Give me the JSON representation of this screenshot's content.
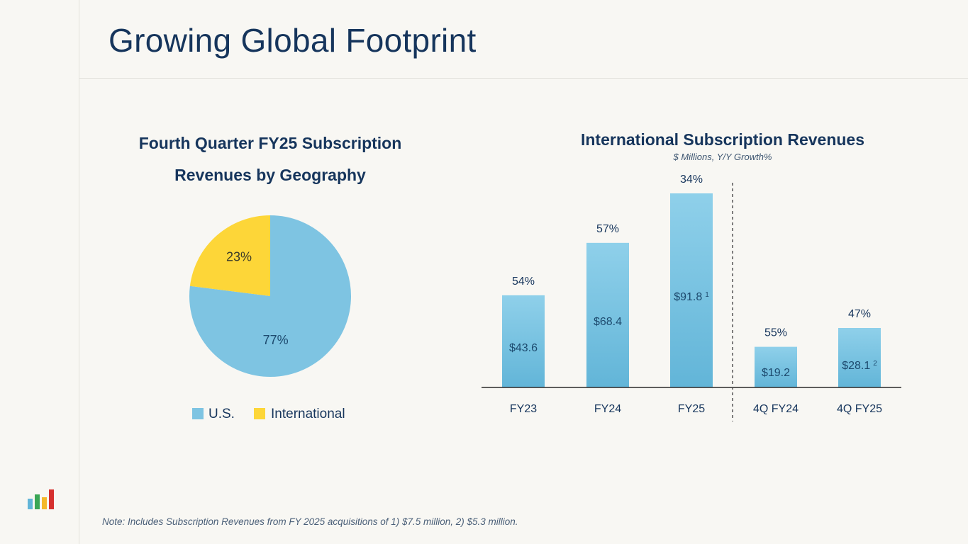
{
  "title": "Growing Global Footprint",
  "note": "Note: Includes Subscription Revenues from FY 2025 acquisitions of 1) $7.5 million, 2) $5.3 million.",
  "colors": {
    "us": "#7ec4e2",
    "international": "#fdd638",
    "bar_top": "#8fd0ea",
    "bar_bottom": "#62b5d8",
    "title": "#16355c"
  },
  "chart_data": [
    {
      "type": "pie",
      "title": "Fourth Quarter FY25 Subscription Revenues by Geography",
      "slices": [
        {
          "label": "U.S.",
          "value": 77,
          "display": "77%"
        },
        {
          "label": "International",
          "value": 23,
          "display": "23%"
        }
      ],
      "legend": [
        "U.S.",
        "International"
      ],
      "legend_position": "bottom"
    },
    {
      "type": "bar",
      "title": "International Subscription Revenues",
      "subtitle": "$ Millions, Y/Y Growth%",
      "categories": [
        "FY23",
        "FY24",
        "FY25",
        "4Q FY24",
        "4Q FY25"
      ],
      "values": [
        43.6,
        68.4,
        91.8,
        19.2,
        28.1
      ],
      "value_labels": [
        "$43.6",
        "$68.4",
        "$91.8",
        "$19.2",
        "$28.1"
      ],
      "footnotes": [
        "",
        "",
        "1",
        "",
        "2"
      ],
      "growth_labels": [
        "54%",
        "57%",
        "34%",
        "55%",
        "47%"
      ],
      "annual_ylim": [
        0,
        95
      ],
      "quarterly_ylim": [
        0,
        38
      ],
      "divider_after": "FY25"
    }
  ]
}
